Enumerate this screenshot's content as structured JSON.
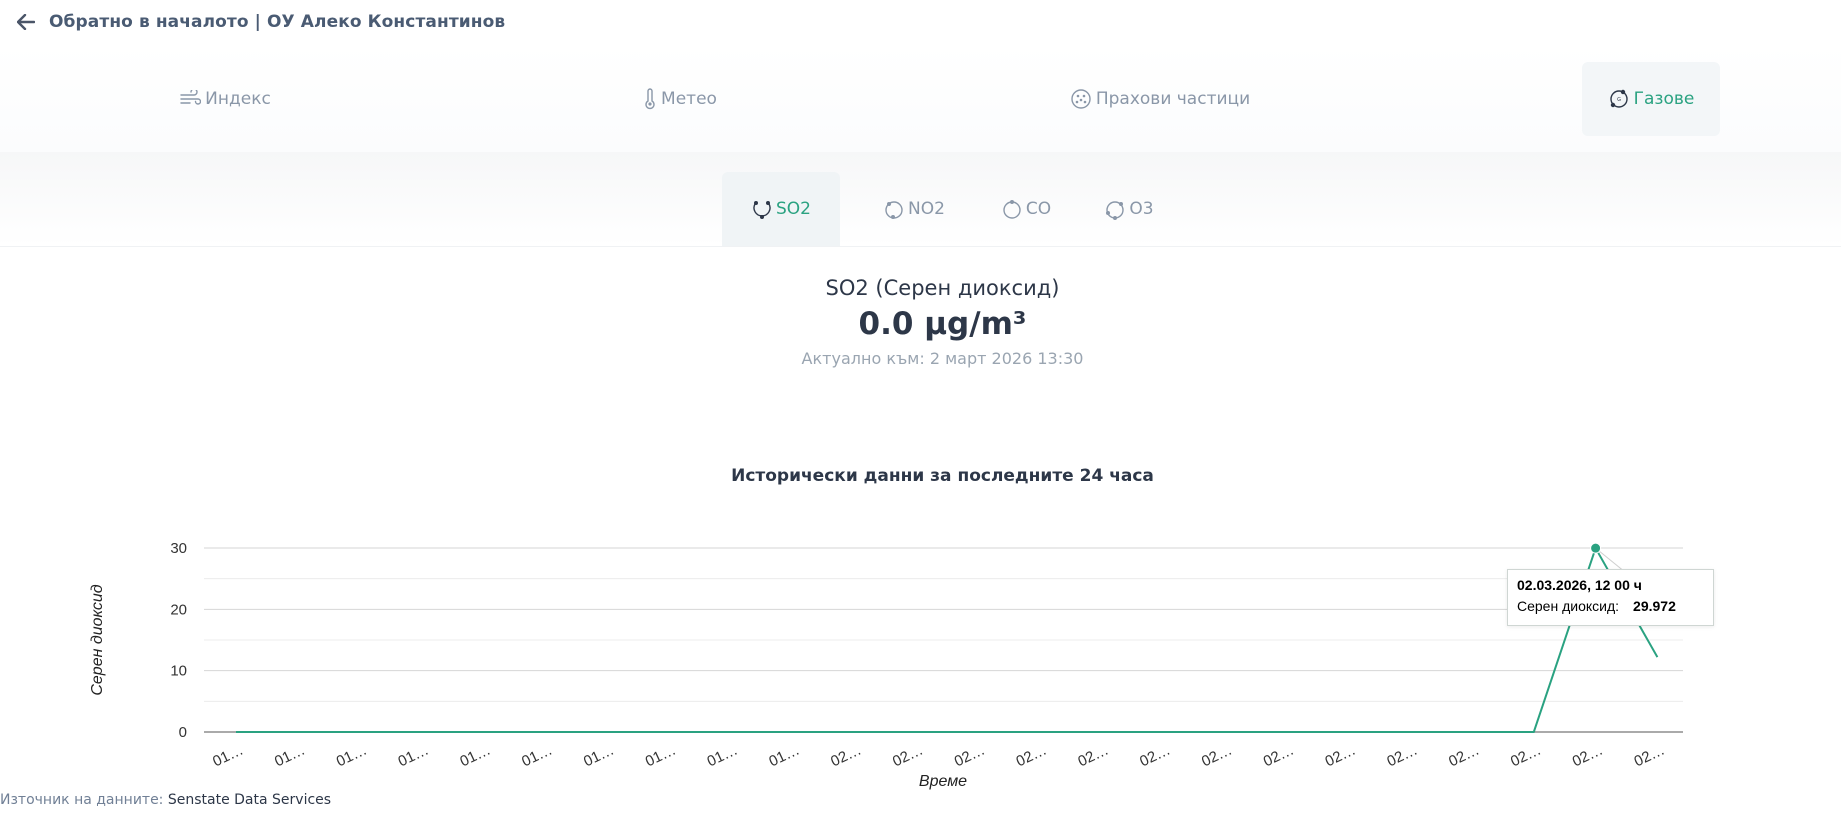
{
  "header": {
    "back_label": "Обратно в началото | ОУ Алеко Константинов"
  },
  "main_tabs": [
    {
      "label": "Индекс",
      "icon": "wind-icon"
    },
    {
      "label": "Метео",
      "icon": "thermometer-icon"
    },
    {
      "label": "Прахови частици",
      "icon": "particles-icon"
    },
    {
      "label": "Газове",
      "icon": "gas-icon",
      "active": true
    }
  ],
  "sub_tabs": [
    {
      "label": "SO2",
      "icon": "so2-icon",
      "active": true
    },
    {
      "label": "NO2",
      "icon": "no2-icon"
    },
    {
      "label": "CO",
      "icon": "co-icon"
    },
    {
      "label": "O3",
      "icon": "o3-icon"
    }
  ],
  "current": {
    "title": "SO2 (Серен диоксид)",
    "value": "0.0 µg/m³",
    "updated": "Актуално към: 2 март 2026 13:30"
  },
  "history_title": "Исторически данни за последните 24 часа",
  "colors": {
    "accent": "#2aa281",
    "line": "#2aa281"
  },
  "chart_data": {
    "type": "line",
    "xlabel": "Време",
    "ylabel": "Серен диоксид",
    "ylim": [
      0,
      30
    ],
    "yticks": [
      0,
      10,
      20,
      30
    ],
    "categories": [
      "01…",
      "01…",
      "01…",
      "01…",
      "01…",
      "01…",
      "01…",
      "01…",
      "01…",
      "01…",
      "02…",
      "02…",
      "02…",
      "02…",
      "02…",
      "02…",
      "02…",
      "02…",
      "02…",
      "02…",
      "02…",
      "02…",
      "02…",
      "02…"
    ],
    "series": [
      {
        "name": "Серен диоксид",
        "values": [
          0,
          0,
          0,
          0,
          0,
          0,
          0,
          0,
          0,
          0,
          0,
          0,
          0,
          0,
          0,
          0,
          0,
          0,
          0,
          0,
          0,
          0,
          29.972,
          12.2
        ]
      }
    ],
    "grid": true,
    "tooltip": {
      "date": "02.03.2026, 12 00 ч",
      "series": "Серен диоксид:",
      "value": "29.972",
      "index": 22
    }
  },
  "footer": {
    "prefix": "Източник на данните:",
    "source": "Senstate Data Services"
  }
}
